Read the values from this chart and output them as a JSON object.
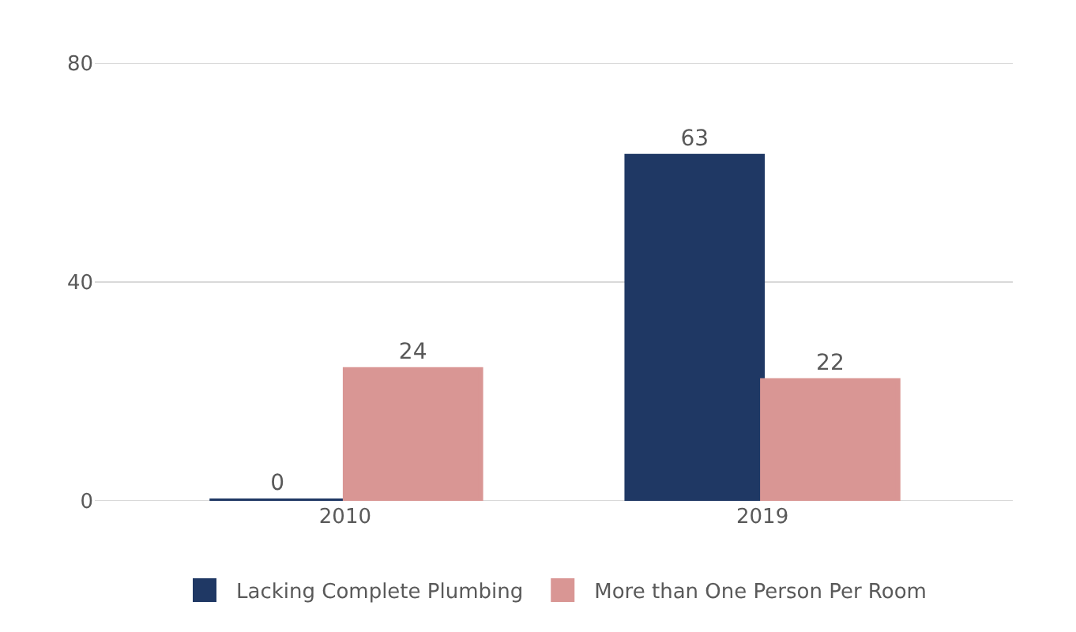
{
  "chart_data": {
    "type": "bar",
    "categories": [
      "2010",
      "2019"
    ],
    "series": [
      {
        "name": "Lacking Complete Plumbing",
        "color": "#1f3864",
        "values": [
          0,
          63
        ]
      },
      {
        "name": "More than One Person Per Room",
        "color": "#d99694",
        "values": [
          24,
          22
        ]
      }
    ],
    "ylim": [
      0,
      80
    ],
    "yticks": [
      0,
      40,
      80
    ],
    "grid": "y",
    "legend": "bottom",
    "data_labels": true
  }
}
